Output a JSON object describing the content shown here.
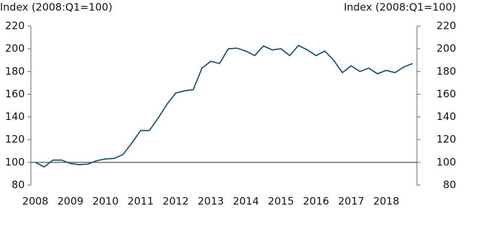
{
  "chart_data": {
    "type": "line",
    "y_label": "Index (2008:Q1=100)",
    "y2_label": "Index (2008:Q1=100)",
    "categories": [
      "2008",
      null,
      null,
      null,
      "2009",
      null,
      null,
      null,
      "2010",
      null,
      null,
      null,
      "2011",
      null,
      null,
      null,
      "2012",
      null,
      null,
      null,
      "2013",
      null,
      null,
      null,
      "2014",
      null,
      null,
      null,
      "2015",
      null,
      null,
      null,
      "2016",
      null,
      null,
      null,
      "2017",
      null,
      null,
      null,
      "2018",
      null,
      null,
      null
    ],
    "series": [
      {
        "color": "#1d5272",
        "values": [
          100,
          96,
          102,
          102,
          99,
          98,
          98.5,
          101.5,
          103,
          103.5,
          107,
          117,
          128,
          128,
          139,
          151,
          161,
          163,
          164,
          183,
          189,
          187,
          200,
          200.5,
          198,
          194,
          202.5,
          199,
          200,
          194,
          203,
          199,
          194,
          198,
          190,
          179,
          185,
          180,
          183,
          178,
          181,
          179,
          184,
          187
        ]
      }
    ],
    "ylim": [
      80,
      220
    ],
    "yticks": [
      80,
      100,
      120,
      140,
      160,
      180,
      200,
      220
    ],
    "y2lim": [
      80,
      220
    ],
    "y2ticks": [
      80,
      100,
      120,
      140,
      160,
      180,
      200,
      220
    ],
    "reference_line": 100
  }
}
